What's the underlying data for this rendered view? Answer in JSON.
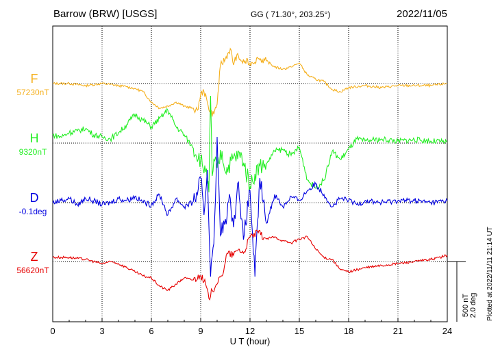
{
  "chart_data": {
    "type": "line",
    "title_left": "Barrow (BRW)  [USGS]",
    "title_center": "GG ( 71.30°, 203.25°)",
    "date": "2022/11/05",
    "xlabel": "U T (hour)",
    "xlim": [
      0,
      24
    ],
    "x_ticks": [
      "0",
      "3",
      "6",
      "9",
      "12",
      "15",
      "18",
      "21",
      "24"
    ],
    "grid": true,
    "scale_label_1": "500 nT",
    "scale_label_2": "2.0 deg",
    "footer": "Plotted at 2022/11/11 21:14 UT",
    "series": [
      {
        "name": "F",
        "baseline": "57230nT",
        "color": "#f5b01e",
        "base_row": 0,
        "x": [
          0,
          1,
          2,
          3,
          3.5,
          4,
          4.5,
          5,
          5.5,
          6,
          6.5,
          7,
          7.5,
          8,
          8.5,
          8.8,
          9,
          9.2,
          9.4,
          9.6,
          9.8,
          10,
          10.2,
          10.5,
          10.8,
          11,
          11.2,
          11.5,
          12,
          12.5,
          13,
          13.5,
          14,
          14.5,
          15,
          15.5,
          16,
          16.5,
          17,
          17.5,
          18,
          19,
          20,
          21,
          22,
          23,
          24
        ],
        "y": [
          0,
          0,
          -5,
          0,
          -2,
          -5,
          -8,
          -12,
          -20,
          -45,
          -60,
          -55,
          -45,
          -55,
          -60,
          -65,
          -25,
          -20,
          -45,
          -70,
          -75,
          -50,
          45,
          60,
          85,
          45,
          70,
          55,
          50,
          60,
          55,
          40,
          35,
          40,
          50,
          20,
          10,
          5,
          -15,
          -20,
          -10,
          -5,
          -10,
          -5,
          -5,
          -5,
          0
        ]
      },
      {
        "name": "H",
        "baseline": "9320nT",
        "color": "#22ee22",
        "base_row": 1,
        "x": [
          0,
          0.5,
          1,
          1.5,
          2,
          2.5,
          3,
          3.5,
          4,
          4.5,
          5,
          5.5,
          6,
          6.5,
          7,
          7.5,
          8,
          8.5,
          9,
          9.3,
          9.5,
          9.6,
          9.7,
          9.8,
          10,
          10.3,
          10.5,
          11,
          11.5,
          12,
          12.3,
          12.6,
          13,
          13.5,
          14,
          14.5,
          15,
          15.5,
          16,
          16.5,
          17,
          17.5,
          18,
          18.5,
          19,
          20,
          21,
          22,
          23,
          24
        ],
        "y": [
          20,
          15,
          25,
          30,
          35,
          20,
          15,
          10,
          25,
          45,
          70,
          55,
          40,
          60,
          80,
          40,
          20,
          -10,
          -40,
          -70,
          -120,
          115,
          -80,
          -40,
          -60,
          -20,
          -70,
          -35,
          -30,
          -105,
          -75,
          -55,
          -50,
          -20,
          -15,
          -30,
          -10,
          -90,
          -110,
          -90,
          -20,
          -40,
          -15,
          10,
          5,
          10,
          5,
          8,
          5,
          2
        ]
      },
      {
        "name": "D",
        "baseline": "-0.1deg",
        "color": "#0000e0",
        "base_row": 2,
        "x": [
          0,
          0.5,
          1,
          1.5,
          2,
          2.5,
          3,
          3.5,
          4,
          4.5,
          5,
          5.5,
          6,
          6.5,
          7,
          7.5,
          8,
          8.5,
          8.8,
          9,
          9.2,
          9.4,
          9.6,
          9.8,
          10,
          10.2,
          10.5,
          10.8,
          11,
          11.3,
          11.6,
          12,
          12.3,
          12.6,
          13,
          13.5,
          14,
          14.5,
          15,
          15.5,
          16,
          16.5,
          17,
          17.5,
          18,
          18.5,
          19,
          20,
          21,
          22,
          23,
          24
        ],
        "y": [
          0,
          5,
          10,
          -5,
          10,
          5,
          -5,
          0,
          10,
          5,
          15,
          0,
          -5,
          20,
          -30,
          10,
          -10,
          0,
          20,
          60,
          -30,
          80,
          -180,
          -100,
          160,
          -80,
          -40,
          10,
          -60,
          50,
          -90,
          30,
          -180,
          60,
          -50,
          20,
          -10,
          15,
          5,
          30,
          45,
          20,
          -10,
          10,
          5,
          -5,
          5,
          0,
          5,
          5,
          0,
          5
        ]
      },
      {
        "name": "Z",
        "baseline": "56620nT",
        "color": "#e60000",
        "base_row": 3,
        "x": [
          0,
          1,
          2,
          2.5,
          3,
          3.5,
          4,
          4.5,
          5,
          5.5,
          6,
          6.5,
          7,
          7.5,
          8,
          8.5,
          9,
          9.3,
          9.5,
          9.7,
          9.9,
          10,
          10.3,
          10.6,
          11,
          11.3,
          11.6,
          12,
          12.5,
          13,
          13.5,
          14,
          14.5,
          15,
          15.5,
          16,
          16.5,
          17,
          17.5,
          18,
          19,
          20,
          21,
          22,
          23,
          24
        ],
        "y": [
          10,
          10,
          5,
          0,
          -5,
          0,
          -5,
          -15,
          -25,
          -35,
          -40,
          -60,
          -70,
          -55,
          -40,
          -45,
          -35,
          -55,
          -90,
          -70,
          -60,
          -55,
          -35,
          20,
          15,
          30,
          20,
          60,
          70,
          55,
          60,
          50,
          45,
          55,
          60,
          30,
          10,
          5,
          -20,
          -25,
          -15,
          -10,
          -5,
          0,
          5,
          15
        ]
      }
    ]
  }
}
